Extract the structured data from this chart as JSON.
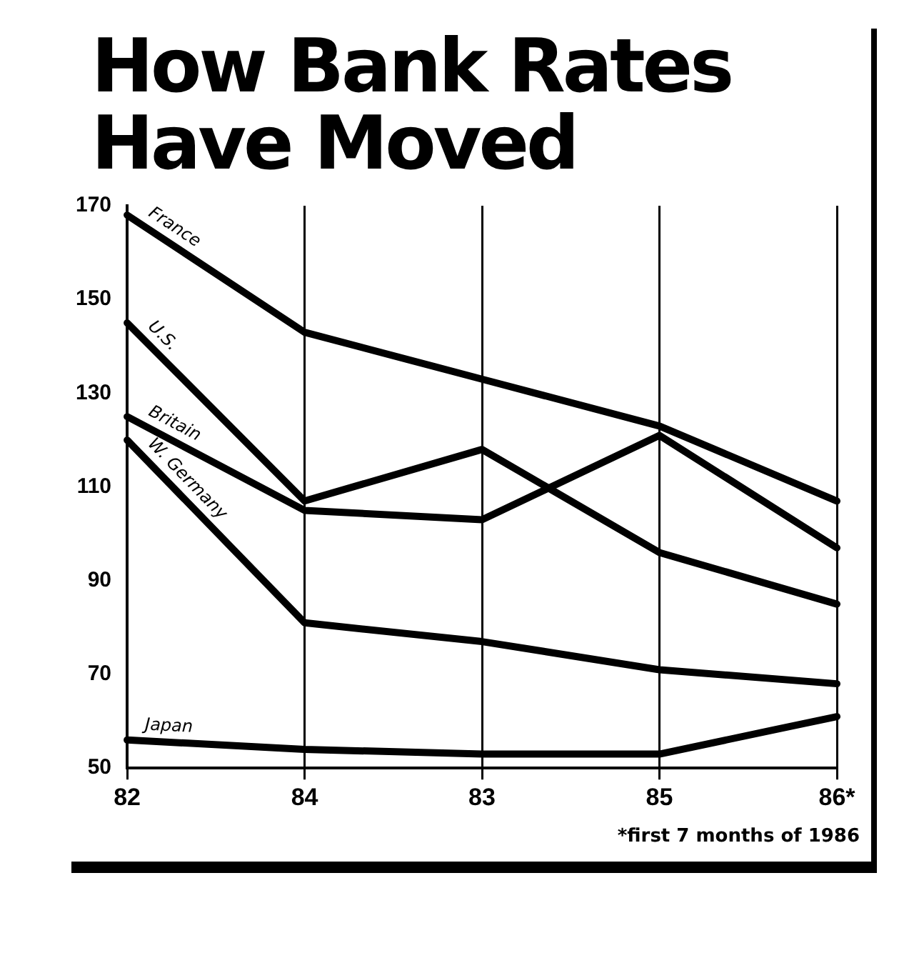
{
  "chart_data": {
    "type": "line",
    "title": "How Bank Rates Have Moved",
    "categories": [
      "82",
      "84",
      "83",
      "85",
      "86*"
    ],
    "series": [
      {
        "name": "France",
        "color": "#000000",
        "values": [
          168,
          143,
          133,
          123,
          107
        ]
      },
      {
        "name": "U.S.",
        "color": "#000000",
        "values": [
          145,
          107,
          118,
          96,
          85
        ]
      },
      {
        "name": "Britain",
        "color": "#000000",
        "values": [
          125,
          105,
          103,
          121,
          97
        ]
      },
      {
        "name": "W. Germany",
        "color": "#000000",
        "values": [
          120,
          81,
          77,
          71,
          68
        ]
      },
      {
        "name": "Japan",
        "color": "#000000",
        "values": [
          56,
          54,
          53,
          53,
          61
        ]
      }
    ],
    "ylim": [
      50,
      170
    ],
    "yticks": [
      50,
      70,
      90,
      110,
      130,
      150,
      170
    ],
    "grid": "x",
    "legend": false,
    "marker": "none",
    "line_style": "solid",
    "annotations": [
      "*first 7 months of 1986"
    ]
  }
}
